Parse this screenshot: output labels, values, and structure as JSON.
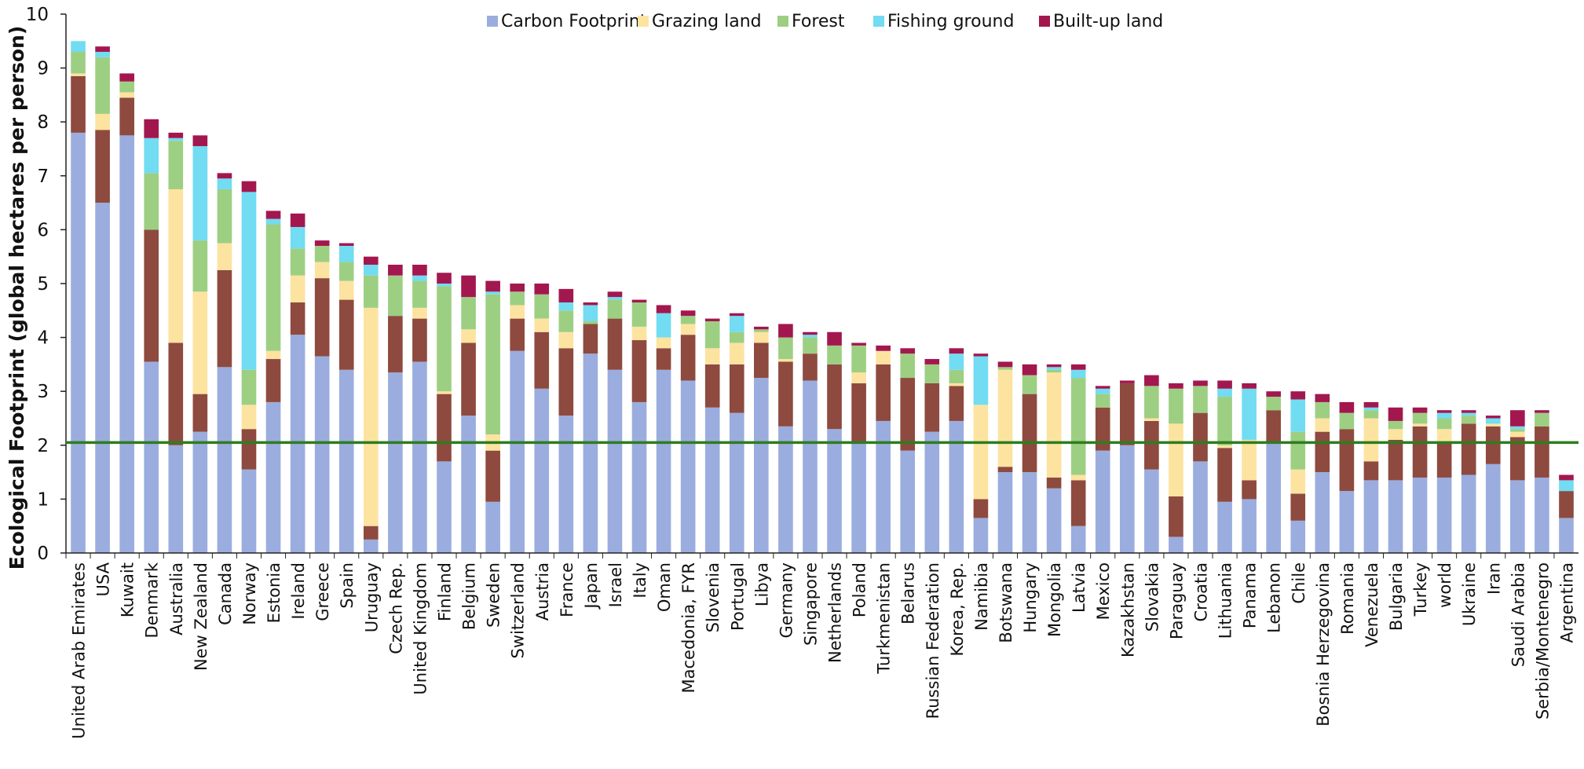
{
  "chart_data": {
    "type": "bar",
    "stacked": true,
    "title": "",
    "xlabel": "",
    "ylabel": "Ecological Footprint (global hectares per person)",
    "ylim": [
      0,
      10
    ],
    "yticks": [
      "0",
      "1",
      "2",
      "3",
      "4",
      "5",
      "6",
      "7",
      "8",
      "9",
      "10"
    ],
    "grid": false,
    "legend_position": "top",
    "reference_line": {
      "value": 2.05,
      "color": "#2e7d1f"
    },
    "categories": [
      "United Arab Emirates",
      "USA",
      "Kuwait",
      "Denmark",
      "Australia",
      "New Zealand",
      "Canada",
      "Norway",
      "Estonia",
      "Ireland",
      "Greece",
      "Spain",
      "Uruguay",
      "Czech Rep.",
      "United Kingdom",
      "Finland",
      "Belgium",
      "Sweden",
      "Switzerland",
      "Austria",
      "France",
      "Japan",
      "Israel",
      "Italy",
      "Oman",
      "Macedonia, FYR",
      "Slovenia",
      "Portugal",
      "Libya",
      "Germany",
      "Singapore",
      "Netherlands",
      "Poland",
      "Turkmenistan",
      "Belarus",
      "Russian Federation",
      "Korea, Rep.",
      "Namibia",
      "Botswana",
      "Hungary",
      "Mongolia",
      "Latvia",
      "Mexico",
      "Kazakhstan",
      "Slovakia",
      "Paraguay",
      "Croatia",
      "Lithuania",
      "Panama",
      "Lebanon",
      "Chile",
      "Bosnia Herzegovina",
      "Romania",
      "Venezuela",
      "Bulgaria",
      "Turkey",
      "world",
      "Ukraine",
      "Iran",
      "Saudi Arabia",
      "Serbia/Montenegro",
      "Argentina"
    ],
    "series": [
      {
        "name": "Carbon Footprint",
        "color": "#9badde",
        "values": [
          7.8,
          6.5,
          7.75,
          3.55,
          2.0,
          2.25,
          3.45,
          1.55,
          2.8,
          4.05,
          3.65,
          3.4,
          0.25,
          3.35,
          3.55,
          1.7,
          2.55,
          0.95,
          3.75,
          3.05,
          2.55,
          3.7,
          3.4,
          2.8,
          3.4,
          3.2,
          2.7,
          2.6,
          3.25,
          2.35,
          3.2,
          2.3,
          2.05,
          2.45,
          1.9,
          2.25,
          2.45,
          0.65,
          1.5,
          1.5,
          1.2,
          0.5,
          1.9,
          2.0,
          1.55,
          0.3,
          1.7,
          0.95,
          1.0,
          2.05,
          0.6,
          1.5,
          1.15,
          1.35,
          1.35,
          1.4,
          1.4,
          1.45,
          1.65,
          1.35,
          1.4,
          0.65
        ]
      },
      {
        "name": "",
        "color": "#8e4a3f",
        "values": [
          1.05,
          1.35,
          0.7,
          2.45,
          1.9,
          0.7,
          1.8,
          0.75,
          0.8,
          0.6,
          1.45,
          1.3,
          0.25,
          1.05,
          0.8,
          1.25,
          1.35,
          0.95,
          0.6,
          1.05,
          1.25,
          0.55,
          0.95,
          1.15,
          0.4,
          0.85,
          0.8,
          0.9,
          0.65,
          1.2,
          0.5,
          1.2,
          1.1,
          1.05,
          1.35,
          0.9,
          0.65,
          0.35,
          0.1,
          1.45,
          0.2,
          0.85,
          0.8,
          1.15,
          0.9,
          0.75,
          0.9,
          1.0,
          0.35,
          0.6,
          0.5,
          0.75,
          1.15,
          0.35,
          0.75,
          0.95,
          0.65,
          0.95,
          0.7,
          0.8,
          0.95,
          0.5
        ]
      },
      {
        "name": "Grazing land",
        "color": "#fde3a0",
        "values": [
          0.05,
          0.3,
          0.1,
          0.0,
          2.85,
          1.9,
          0.5,
          0.45,
          0.15,
          0.5,
          0.3,
          0.35,
          4.05,
          0.0,
          0.2,
          0.05,
          0.25,
          0.3,
          0.25,
          0.25,
          0.3,
          0.0,
          0.0,
          0.25,
          0.2,
          0.2,
          0.3,
          0.4,
          0.2,
          0.05,
          0.0,
          0.0,
          0.2,
          0.25,
          0.0,
          0.0,
          0.05,
          1.75,
          1.8,
          0.0,
          1.95,
          0.1,
          0.0,
          0.0,
          0.05,
          1.35,
          0.0,
          0.05,
          0.75,
          0.0,
          0.45,
          0.25,
          0.0,
          0.8,
          0.2,
          0.05,
          0.25,
          0.0,
          0.05,
          0.1,
          0.0,
          0.0
        ]
      },
      {
        "name": "Forest",
        "color": "#9dcf83",
        "values": [
          0.4,
          1.05,
          0.2,
          1.05,
          0.9,
          0.95,
          1.0,
          0.65,
          2.35,
          0.5,
          0.3,
          0.35,
          0.6,
          0.75,
          0.5,
          1.95,
          0.6,
          2.6,
          0.25,
          0.45,
          0.4,
          0.05,
          0.35,
          0.45,
          0.0,
          0.15,
          0.5,
          0.2,
          0.05,
          0.4,
          0.3,
          0.35,
          0.5,
          0.0,
          0.45,
          0.35,
          0.25,
          0.0,
          0.05,
          0.35,
          0.05,
          1.8,
          0.25,
          0.0,
          0.6,
          0.65,
          0.5,
          0.9,
          0.0,
          0.25,
          0.7,
          0.3,
          0.3,
          0.15,
          0.15,
          0.2,
          0.2,
          0.15,
          0.0,
          0.05,
          0.25,
          0.0
        ]
      },
      {
        "name": "Fishing ground",
        "color": "#71dcf2",
        "values": [
          0.2,
          0.1,
          0.0,
          0.65,
          0.05,
          1.75,
          0.2,
          3.3,
          0.1,
          0.4,
          0.0,
          0.3,
          0.2,
          0.0,
          0.1,
          0.05,
          0.0,
          0.05,
          0.0,
          0.0,
          0.15,
          0.3,
          0.05,
          0.0,
          0.45,
          0.0,
          0.0,
          0.3,
          0.0,
          0.0,
          0.05,
          0.0,
          0.0,
          0.0,
          0.0,
          0.0,
          0.3,
          0.9,
          0.0,
          0.0,
          0.05,
          0.15,
          0.1,
          0.0,
          0.0,
          0.0,
          0.0,
          0.15,
          0.95,
          0.0,
          0.6,
          0.0,
          0.0,
          0.05,
          0.0,
          0.0,
          0.1,
          0.05,
          0.1,
          0.05,
          0.0,
          0.2
        ]
      },
      {
        "name": "Built-up land",
        "color": "#a3174f",
        "values": [
          0.0,
          0.1,
          0.15,
          0.35,
          0.1,
          0.2,
          0.1,
          0.2,
          0.15,
          0.25,
          0.1,
          0.05,
          0.15,
          0.2,
          0.2,
          0.2,
          0.4,
          0.2,
          0.15,
          0.2,
          0.25,
          0.05,
          0.1,
          0.05,
          0.15,
          0.1,
          0.05,
          0.05,
          0.05,
          0.25,
          0.05,
          0.25,
          0.05,
          0.1,
          0.1,
          0.1,
          0.1,
          0.05,
          0.1,
          0.2,
          0.05,
          0.1,
          0.05,
          0.05,
          0.2,
          0.1,
          0.1,
          0.15,
          0.1,
          0.1,
          0.15,
          0.15,
          0.2,
          0.1,
          0.25,
          0.1,
          0.05,
          0.05,
          0.05,
          0.3,
          0.05,
          0.1
        ]
      }
    ]
  }
}
